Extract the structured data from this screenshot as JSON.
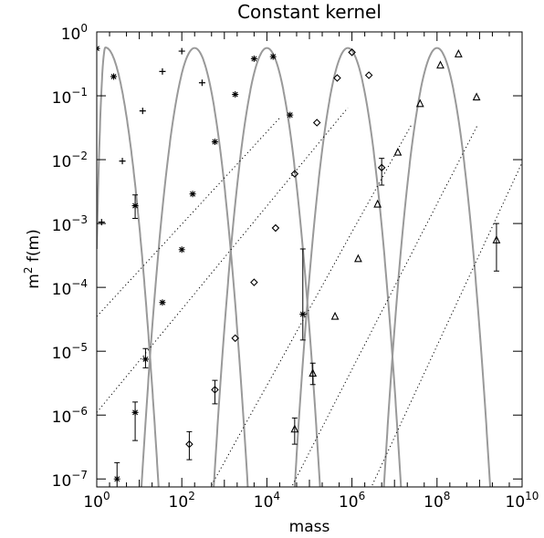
{
  "chart_data": {
    "type": "scatter",
    "title": "Constant kernel",
    "xlabel": "mass",
    "ylabel": "m2 f(m)",
    "ylabel_base": "m",
    "ylabel_sup": "2",
    "ylabel_rest": " f(m)",
    "x_scale": "log",
    "y_scale": "log",
    "xlim": [
      1,
      10000000000
    ],
    "ylim": [
      7.5e-08,
      1.0
    ],
    "x_ticks": [
      {
        "value": 1,
        "base": "10",
        "exp": "0"
      },
      {
        "value": 100,
        "base": "10",
        "exp": "2"
      },
      {
        "value": 10000,
        "base": "10",
        "exp": "4"
      },
      {
        "value": 1000000,
        "base": "10",
        "exp": "6"
      },
      {
        "value": 100000000,
        "base": "10",
        "exp": "8"
      },
      {
        "value": 10000000000,
        "base": "10",
        "exp": "10"
      }
    ],
    "y_ticks": [
      {
        "value": 1e-07,
        "base": "10",
        "exp": "−7"
      },
      {
        "value": 1e-06,
        "base": "10",
        "exp": "−6"
      },
      {
        "value": 1e-05,
        "base": "10",
        "exp": "−5"
      },
      {
        "value": 0.0001,
        "base": "10",
        "exp": "−4"
      },
      {
        "value": 0.001,
        "base": "10",
        "exp": "−3"
      },
      {
        "value": 0.01,
        "base": "10",
        "exp": "−2"
      },
      {
        "value": 0.1,
        "base": "10",
        "exp": "−1"
      },
      {
        "value": 1,
        "base": "10",
        "exp": "0"
      }
    ],
    "grid": false,
    "legend": "none",
    "curve_color": "#999999",
    "marker_color": "#000000",
    "analytic_curves": [
      {
        "peak_x": 1.6,
        "peak_y": 0.57,
        "low_y": 0.0004
      },
      {
        "peak_x": 200,
        "peak_y": 0.56
      },
      {
        "peak_x": 10000,
        "peak_y": 0.56
      },
      {
        "peak_x": 800000,
        "peak_y": 0.56
      },
      {
        "peak_x": 100000000,
        "peak_y": 0.56
      }
    ],
    "asymptote_lines": [
      {
        "x": [
          1,
          20000
        ],
        "y": [
          3.5e-05,
          0.045
        ]
      },
      {
        "x": [
          1,
          800000
        ],
        "y": [
          1.1e-06,
          0.065
        ]
      },
      {
        "x": [
          500,
          25000000
        ],
        "y": [
          8e-08,
          0.035
        ]
      },
      {
        "x": [
          40000,
          900000000
        ],
        "y": [
          8e-08,
          0.035
        ]
      },
      {
        "x": [
          3000000,
          10000000000
        ],
        "y": [
          8e-08,
          0.009
        ]
      }
    ],
    "series": [
      {
        "marker": "asterisk",
        "points": [
          {
            "x": 1,
            "y": 0.55
          },
          {
            "x": 2.5,
            "y": 0.2
          },
          {
            "x": 8,
            "y": 0.0019,
            "err": [
              0.0012,
              0.0028
            ]
          },
          {
            "x": 14,
            "y": 7.5e-06,
            "err": [
              5.5e-06,
              1.1e-05
            ]
          },
          {
            "x": 8,
            "y": 1.1e-06,
            "err": [
              4e-07,
              1.6e-06
            ]
          },
          {
            "x": 3,
            "y": 1e-07,
            "err": [
              7.5e-08,
              1.8e-07
            ]
          }
        ]
      },
      {
        "marker": "plus",
        "points": [
          {
            "x": 1.3,
            "y": 0.00105
          },
          {
            "x": 4,
            "y": 0.0095
          },
          {
            "x": 12,
            "y": 0.058
          },
          {
            "x": 35,
            "y": 0.24
          },
          {
            "x": 100,
            "y": 0.5
          },
          {
            "x": 300,
            "y": 0.16
          }
        ]
      },
      {
        "marker": "asterisk",
        "points": [
          {
            "x": 35,
            "y": 5.8e-05
          },
          {
            "x": 100,
            "y": 0.00039
          },
          {
            "x": 180,
            "y": 0.0029
          },
          {
            "x": 600,
            "y": 0.019
          },
          {
            "x": 1800,
            "y": 0.105
          },
          {
            "x": 5000,
            "y": 0.38
          },
          {
            "x": 14000,
            "y": 0.41
          },
          {
            "x": 35000,
            "y": 0.05
          },
          {
            "x": 70000,
            "y": 3.8e-05,
            "err": [
              1.5e-05,
              0.0004
            ]
          }
        ]
      },
      {
        "marker": "diamond",
        "points": [
          {
            "x": 150,
            "y": 3.5e-07,
            "err": [
              2e-07,
              5.5e-07
            ]
          },
          {
            "x": 600,
            "y": 2.5e-06,
            "err": [
              1.5e-06,
              3.5e-06
            ]
          },
          {
            "x": 1800,
            "y": 1.6e-05
          },
          {
            "x": 5000,
            "y": 0.00012
          },
          {
            "x": 16000,
            "y": 0.00085
          },
          {
            "x": 45000,
            "y": 0.006
          },
          {
            "x": 150000,
            "y": 0.038
          },
          {
            "x": 450000,
            "y": 0.19
          },
          {
            "x": 1000000,
            "y": 0.48
          },
          {
            "x": 2500000,
            "y": 0.21
          },
          {
            "x": 5000000,
            "y": 0.0075,
            "err": [
              0.004,
              0.0105
            ]
          }
        ]
      },
      {
        "marker": "triangle",
        "points": [
          {
            "x": 45000,
            "y": 6e-07,
            "err": [
              3.5e-07,
              9e-07
            ]
          },
          {
            "x": 120000,
            "y": 4.5e-06,
            "err": [
              3e-06,
              6.5e-06
            ]
          },
          {
            "x": 400000,
            "y": 3.5e-05
          },
          {
            "x": 1400000,
            "y": 0.00028
          },
          {
            "x": 4000000,
            "y": 0.002
          },
          {
            "x": 12000000,
            "y": 0.013
          },
          {
            "x": 40000000,
            "y": 0.075
          },
          {
            "x": 120000000,
            "y": 0.3
          },
          {
            "x": 320000000,
            "y": 0.45
          },
          {
            "x": 850000000,
            "y": 0.095
          },
          {
            "x": 2500000000,
            "y": 0.00055,
            "err": [
              0.00018,
              0.001
            ]
          }
        ]
      }
    ]
  }
}
